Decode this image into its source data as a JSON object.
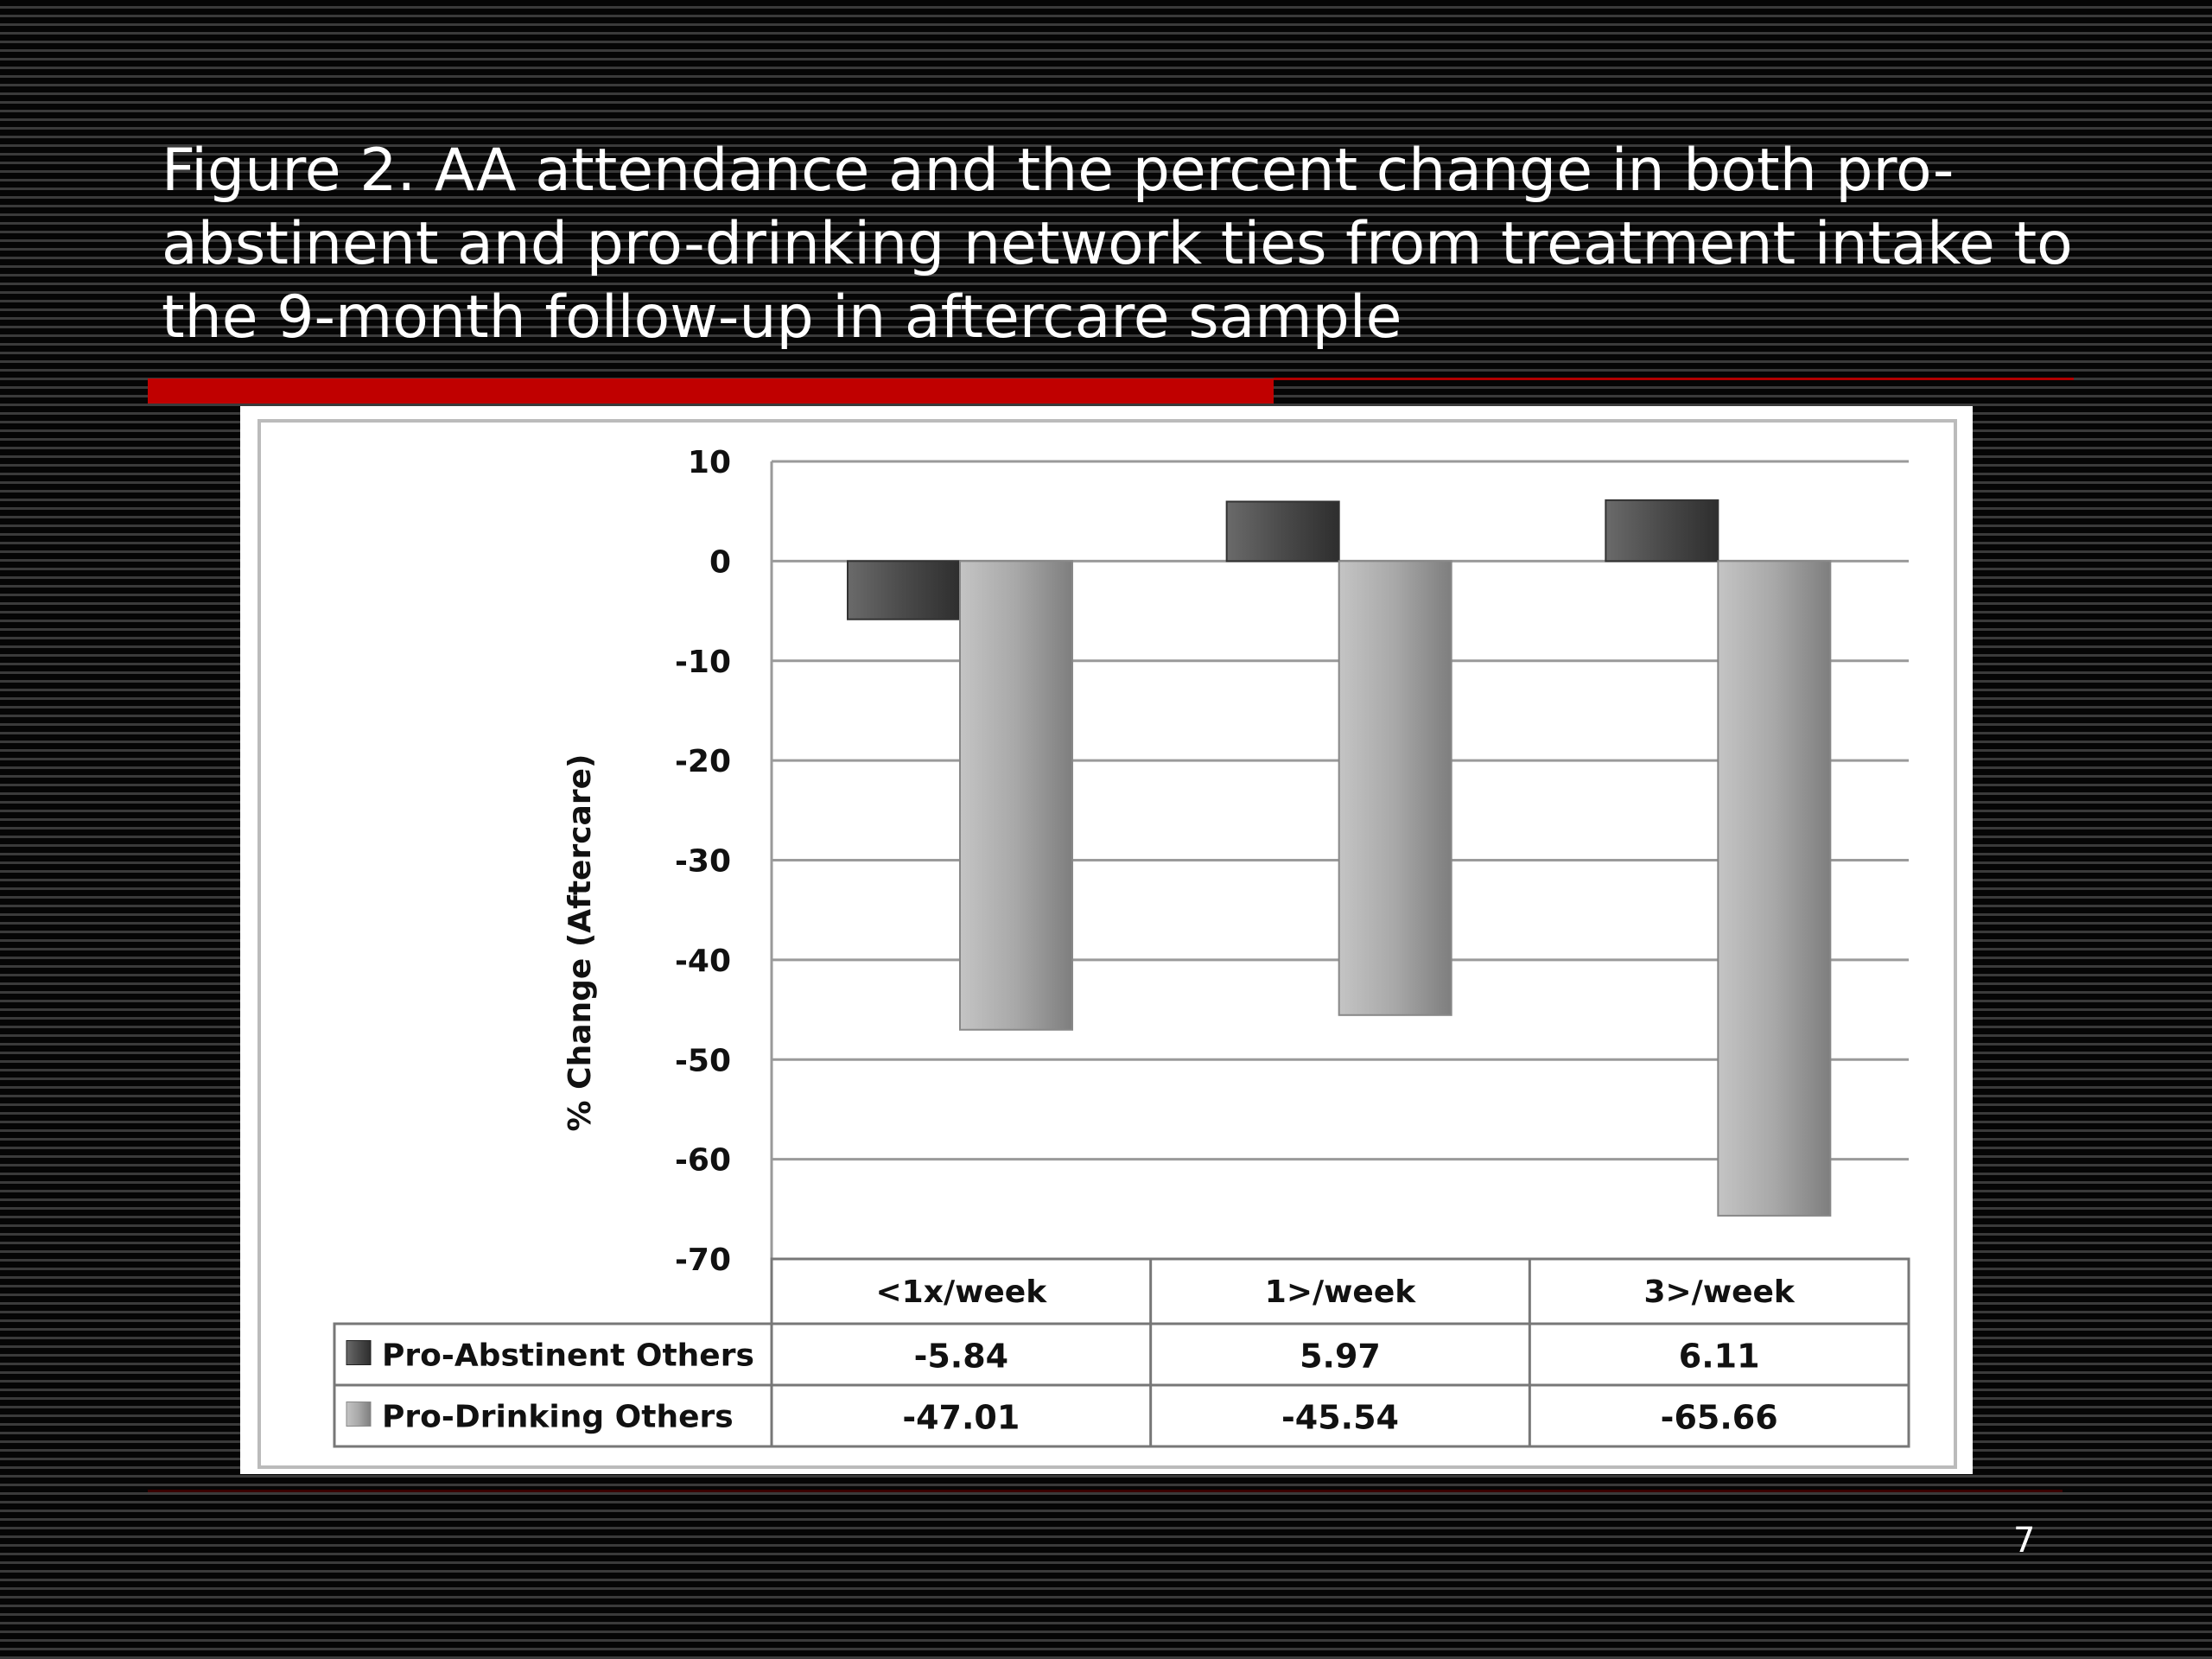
{
  "slide": {
    "title": "Figure 2. AA attendance and the percent change in both pro-abstinent and pro-drinking network ties from treatment intake to the 9-month follow-up in aftercare sample",
    "page_number": "7",
    "accent_color": "#c00000"
  },
  "chart_data": {
    "type": "bar",
    "title": "",
    "xlabel": "",
    "ylabel": "% Change (Aftercare)",
    "ylim": [
      -70,
      10
    ],
    "yticks": [
      10,
      0,
      -10,
      -20,
      -30,
      -40,
      -50,
      -60,
      -70
    ],
    "grid": true,
    "legend": "data-table-below",
    "categories": [
      "<1x/week",
      "1>/week",
      "3>/week"
    ],
    "series": [
      {
        "name": "Pro-Abstinent Others",
        "values": [
          -5.84,
          5.97,
          6.11
        ],
        "value_labels": [
          "-5.84",
          "5.97",
          "6.11"
        ],
        "color": "#4a4a4a"
      },
      {
        "name": "Pro-Drinking Others",
        "values": [
          -47.01,
          -45.54,
          -65.66
        ],
        "value_labels": [
          "-47.01",
          "-45.54",
          "-65.66"
        ],
        "color": "#a8a8a8"
      }
    ]
  }
}
